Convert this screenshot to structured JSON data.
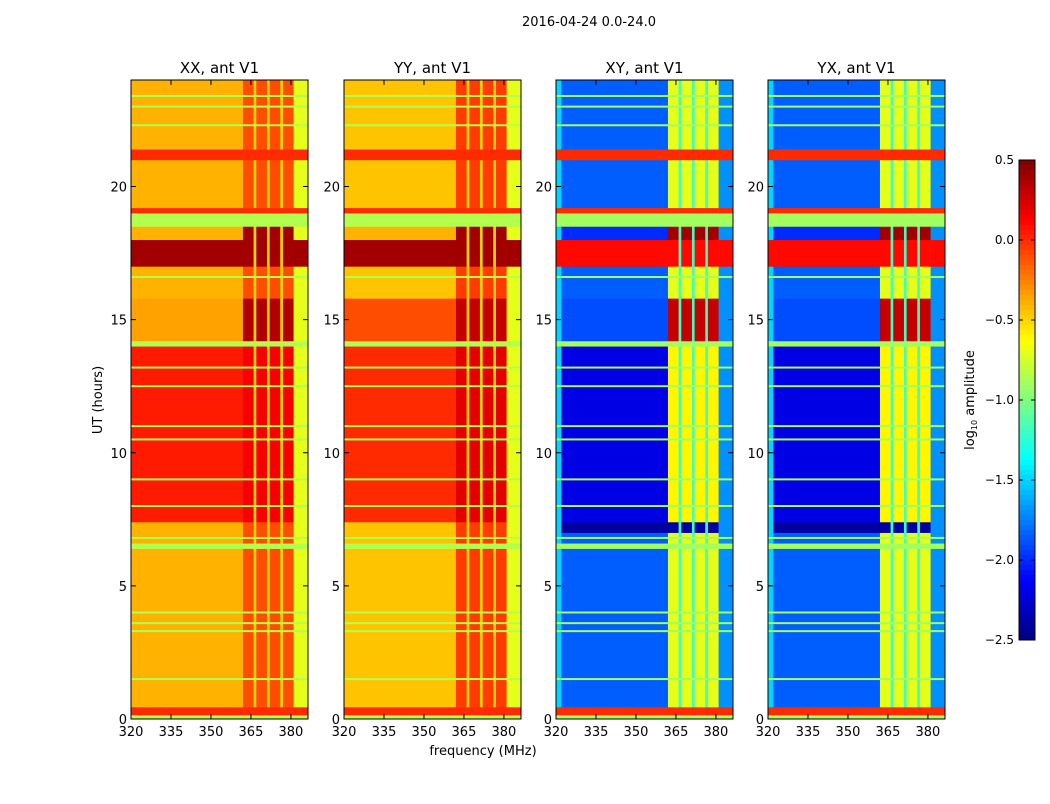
{
  "chart_data": {
    "type": "heatmap",
    "title": "2016-04-24 0.0-24.0",
    "xlabel": "frequency (MHz)",
    "ylabel": "UT (hours)",
    "xlim": [
      320,
      386.4
    ],
    "ylim": [
      0,
      24
    ],
    "xticks": [
      320,
      335,
      350,
      365,
      380
    ],
    "yticks": [
      0,
      5,
      10,
      15,
      20
    ],
    "colorbar": {
      "label_main": "log",
      "label_sub": "10",
      "label_rest": " amplitude",
      "vmin": -2.5,
      "vmax": 0.5,
      "ticks": [
        "0.5",
        "0.0",
        "−0.5",
        "−1.0",
        "−1.5",
        "−2.0",
        "−2.5"
      ],
      "tick_values": [
        0.5,
        0.0,
        -0.5,
        -1.0,
        -1.5,
        -2.0,
        -2.5
      ],
      "colormap": "jet"
    },
    "rfi_columns_mhz": [
      [
        362,
        366
      ],
      [
        367,
        371
      ],
      [
        372,
        376
      ],
      [
        377,
        381
      ]
    ],
    "time_bands": [
      {
        "hours": [
          0,
          0.15
        ],
        "kind": "flag"
      },
      {
        "hours": [
          0.15,
          0.45
        ],
        "kind": "redline"
      },
      {
        "hours": [
          0.45,
          6.4
        ],
        "kind": "normal"
      },
      {
        "hours": [
          6.4,
          6.6
        ],
        "kind": "flag"
      },
      {
        "hours": [
          6.6,
          7.0
        ],
        "kind": "normal"
      },
      {
        "hours": [
          7.0,
          7.4
        ],
        "kind": "dark"
      },
      {
        "hours": [
          7.4,
          14.0
        ],
        "kind": "strong"
      },
      {
        "hours": [
          14.0,
          14.2
        ],
        "kind": "flag"
      },
      {
        "hours": [
          14.2,
          15.8
        ],
        "kind": "rfi"
      },
      {
        "hours": [
          15.8,
          17.0
        ],
        "kind": "normal"
      },
      {
        "hours": [
          17.0,
          18.0
        ],
        "kind": "burst"
      },
      {
        "hours": [
          18.0,
          18.5
        ],
        "kind": "rfi2"
      },
      {
        "hours": [
          18.5,
          19.0
        ],
        "kind": "flag"
      },
      {
        "hours": [
          19.0,
          19.2
        ],
        "kind": "redline"
      },
      {
        "hours": [
          19.2,
          21.0
        ],
        "kind": "normal"
      },
      {
        "hours": [
          21.0,
          21.4
        ],
        "kind": "redline"
      },
      {
        "hours": [
          21.4,
          24.0
        ],
        "kind": "normal"
      }
    ],
    "flag_lines_hours": [
      1.5,
      3.3,
      3.6,
      4.0,
      6.8,
      8.0,
      9.0,
      10.5,
      11.0,
      12.5,
      13.2,
      16.6,
      22.3,
      23.0,
      23.4
    ],
    "panels": [
      {
        "title": "XX, ant V1",
        "type": "auto",
        "levels": {
          "flag": [
            -0.85,
            -0.85
          ],
          "redline": [
            0.0,
            0.0
          ],
          "normal": [
            -0.4,
            -0.1
          ],
          "dark": [
            -0.4,
            -0.1
          ],
          "strong": [
            0.05,
            0.15
          ],
          "rfi": [
            -0.35,
            0.35
          ],
          "burst": [
            0.4,
            0.4
          ],
          "rfi2": [
            -0.4,
            0.4
          ]
        },
        "edge_low": -0.6,
        "edge_high": -0.7,
        "gap": -0.5
      },
      {
        "title": "YY, ant V1",
        "type": "auto",
        "levels": {
          "flag": [
            -0.85,
            -0.85
          ],
          "redline": [
            0.0,
            0.0
          ],
          "normal": [
            -0.45,
            -0.05
          ],
          "dark": [
            -0.45,
            -0.05
          ],
          "strong": [
            0.0,
            0.2
          ],
          "rfi": [
            -0.1,
            0.3
          ],
          "burst": [
            0.4,
            0.4
          ],
          "rfi2": [
            -0.4,
            0.4
          ]
        },
        "edge_low": -0.65,
        "edge_high": -0.7,
        "gap": -0.5
      },
      {
        "title": "XY, ant V1",
        "type": "cross",
        "levels": {
          "flag": [
            -0.9,
            -0.9
          ],
          "redline": [
            0.0,
            0.0
          ],
          "normal": [
            -1.85,
            -0.7
          ],
          "dark": [
            -2.4,
            -2.4
          ],
          "strong": [
            -2.2,
            -0.6
          ],
          "rfi": [
            -1.9,
            0.3
          ],
          "burst": [
            0.1,
            0.1
          ],
          "rfi2": [
            -2.0,
            0.4
          ]
        },
        "edge_low": -1.5,
        "edge_high": -1.7,
        "gap": -1.2
      },
      {
        "title": "YX, ant V1",
        "type": "cross",
        "levels": {
          "flag": [
            -0.9,
            -0.9
          ],
          "redline": [
            0.0,
            0.0
          ],
          "normal": [
            -1.85,
            -0.7
          ],
          "dark": [
            -2.4,
            -2.4
          ],
          "strong": [
            -2.2,
            -0.6
          ],
          "rfi": [
            -1.9,
            0.3
          ],
          "burst": [
            0.1,
            0.1
          ],
          "rfi2": [
            -2.0,
            0.4
          ]
        },
        "edge_low": -1.5,
        "edge_high": -1.7,
        "gap": -1.2
      }
    ]
  }
}
